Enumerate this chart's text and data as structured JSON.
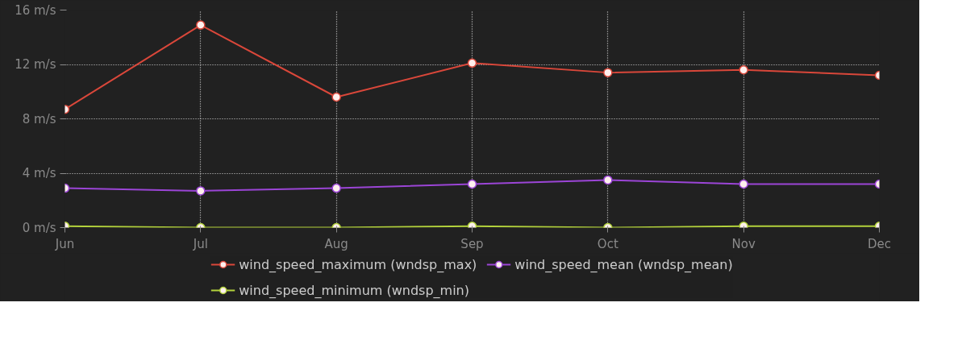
{
  "chart_data": {
    "type": "line",
    "categories": [
      "Jun",
      "Jul",
      "Aug",
      "Sep",
      "Oct",
      "Nov",
      "Dec"
    ],
    "series": [
      {
        "name": "wind_speed_maximum (wndsp_max)",
        "color": "#d9473a",
        "values": [
          8.7,
          14.9,
          9.6,
          12.1,
          11.4,
          11.6,
          11.2
        ]
      },
      {
        "name": "wind_speed_mean (wndsp_mean)",
        "color": "#9b45d6",
        "values": [
          2.9,
          2.7,
          2.9,
          3.2,
          3.5,
          3.2,
          3.2
        ]
      },
      {
        "name": "wind_speed_minimum (wndsp_min)",
        "color": "#b3d23c",
        "values": [
          0.1,
          0,
          0,
          0.1,
          0,
          0.1,
          0.1
        ]
      }
    ],
    "ylim": [
      0,
      16
    ],
    "yticks": [
      {
        "value": 0,
        "label": "0 m/s"
      },
      {
        "value": 4,
        "label": "4 m/s"
      },
      {
        "value": 8,
        "label": "8 m/s"
      },
      {
        "value": 12,
        "label": "12 m/s"
      },
      {
        "value": 16,
        "label": "16 m/s"
      }
    ],
    "grid": true,
    "legend": "bottom",
    "marker": "circle",
    "line_style": "solid"
  }
}
